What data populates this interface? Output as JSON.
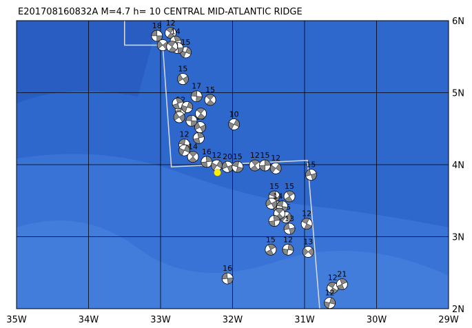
{
  "title": "E201708160832A M=4.7 h= 10 CENTRAL MID-ATLANTIC RIDGE",
  "xlim": [
    -35,
    -29
  ],
  "ylim": [
    2,
    6
  ],
  "xticks": [
    {
      "value": -35,
      "label": "35W"
    },
    {
      "value": -34,
      "label": "34W"
    },
    {
      "value": -33,
      "label": "33W"
    },
    {
      "value": -32,
      "label": "32W"
    },
    {
      "value": -31,
      "label": "31W"
    },
    {
      "value": -30,
      "label": "30W"
    },
    {
      "value": -29,
      "label": "29W"
    }
  ],
  "yticks": [
    {
      "value": 6,
      "label": "6N"
    },
    {
      "value": 5,
      "label": "5N"
    },
    {
      "value": 4,
      "label": "4N"
    },
    {
      "value": 3,
      "label": "3N"
    },
    {
      "value": 2,
      "label": "2N"
    }
  ],
  "ridge": {
    "lon": [
      -33.5,
      -33.5,
      -32.97,
      -32.85,
      -30.96,
      -30.79
    ],
    "lat": [
      6,
      5.66,
      5.66,
      3.97,
      4.06,
      2
    ]
  },
  "epicenter": {
    "lon": -32.21,
    "lat": 3.89
  },
  "events": [
    {
      "lon": -33.05,
      "lat": 5.79,
      "depth": "18"
    },
    {
      "lon": -32.86,
      "lat": 5.83,
      "depth": "12"
    },
    {
      "lon": -32.79,
      "lat": 5.71,
      "depth": "14"
    },
    {
      "lon": -32.65,
      "lat": 5.56,
      "depth": "15"
    },
    {
      "lon": -32.69,
      "lat": 5.19,
      "depth": "15"
    },
    {
      "lon": -32.5,
      "lat": 4.95,
      "depth": "17"
    },
    {
      "lon": -32.31,
      "lat": 4.9,
      "depth": "15"
    },
    {
      "lon": -32.72,
      "lat": 4.76,
      "depth": "12"
    },
    {
      "lon": -31.98,
      "lat": 4.56,
      "depth": "10"
    },
    {
      "lon": -32.45,
      "lat": 4.52,
      "depth": "13"
    },
    {
      "lon": -32.67,
      "lat": 4.28,
      "depth": "12"
    },
    {
      "lon": -32.55,
      "lat": 4.11,
      "depth": "14"
    },
    {
      "lon": -32.36,
      "lat": 4.04,
      "depth": "16"
    },
    {
      "lon": -32.22,
      "lat": 3.99,
      "depth": "12"
    },
    {
      "lon": -32.07,
      "lat": 3.97,
      "depth": "20"
    },
    {
      "lon": -31.93,
      "lat": 3.97,
      "depth": "15"
    },
    {
      "lon": -31.69,
      "lat": 3.99,
      "depth": "12"
    },
    {
      "lon": -31.55,
      "lat": 3.99,
      "depth": "15"
    },
    {
      "lon": -31.4,
      "lat": 3.95,
      "depth": "12"
    },
    {
      "lon": -30.91,
      "lat": 3.86,
      "depth": "15"
    },
    {
      "lon": -31.42,
      "lat": 3.56,
      "depth": "15"
    },
    {
      "lon": -31.21,
      "lat": 3.56,
      "depth": "15"
    },
    {
      "lon": -31.37,
      "lat": 3.42,
      "depth": "14"
    },
    {
      "lon": -31.26,
      "lat": 3.27,
      "depth": "15"
    },
    {
      "lon": -31.21,
      "lat": 3.11,
      "depth": "13"
    },
    {
      "lon": -30.97,
      "lat": 3.18,
      "depth": "12"
    },
    {
      "lon": -31.47,
      "lat": 2.82,
      "depth": "15"
    },
    {
      "lon": -31.23,
      "lat": 2.82,
      "depth": "12"
    },
    {
      "lon": -30.95,
      "lat": 2.79,
      "depth": "13"
    },
    {
      "lon": -32.07,
      "lat": 2.42,
      "depth": "16"
    },
    {
      "lon": -30.61,
      "lat": 2.29,
      "depth": "12"
    },
    {
      "lon": -30.48,
      "lat": 2.34,
      "depth": "21"
    },
    {
      "lon": -30.65,
      "lat": 2.08,
      "depth": "12"
    },
    {
      "lon": -32.97,
      "lat": 5.66
    },
    {
      "lon": -32.76,
      "lat": 5.62
    },
    {
      "lon": -32.84,
      "lat": 5.64
    },
    {
      "lon": -32.76,
      "lat": 4.85
    },
    {
      "lon": -32.63,
      "lat": 4.8
    },
    {
      "lon": -32.74,
      "lat": 4.66
    },
    {
      "lon": -32.57,
      "lat": 4.61
    },
    {
      "lon": -32.44,
      "lat": 4.71
    },
    {
      "lon": -32.47,
      "lat": 4.37
    },
    {
      "lon": -32.67,
      "lat": 4.2
    },
    {
      "lon": -31.46,
      "lat": 3.46
    },
    {
      "lon": -31.31,
      "lat": 3.42
    },
    {
      "lon": -31.35,
      "lat": 3.32
    },
    {
      "lon": -31.42,
      "lat": 3.22
    }
  ]
}
